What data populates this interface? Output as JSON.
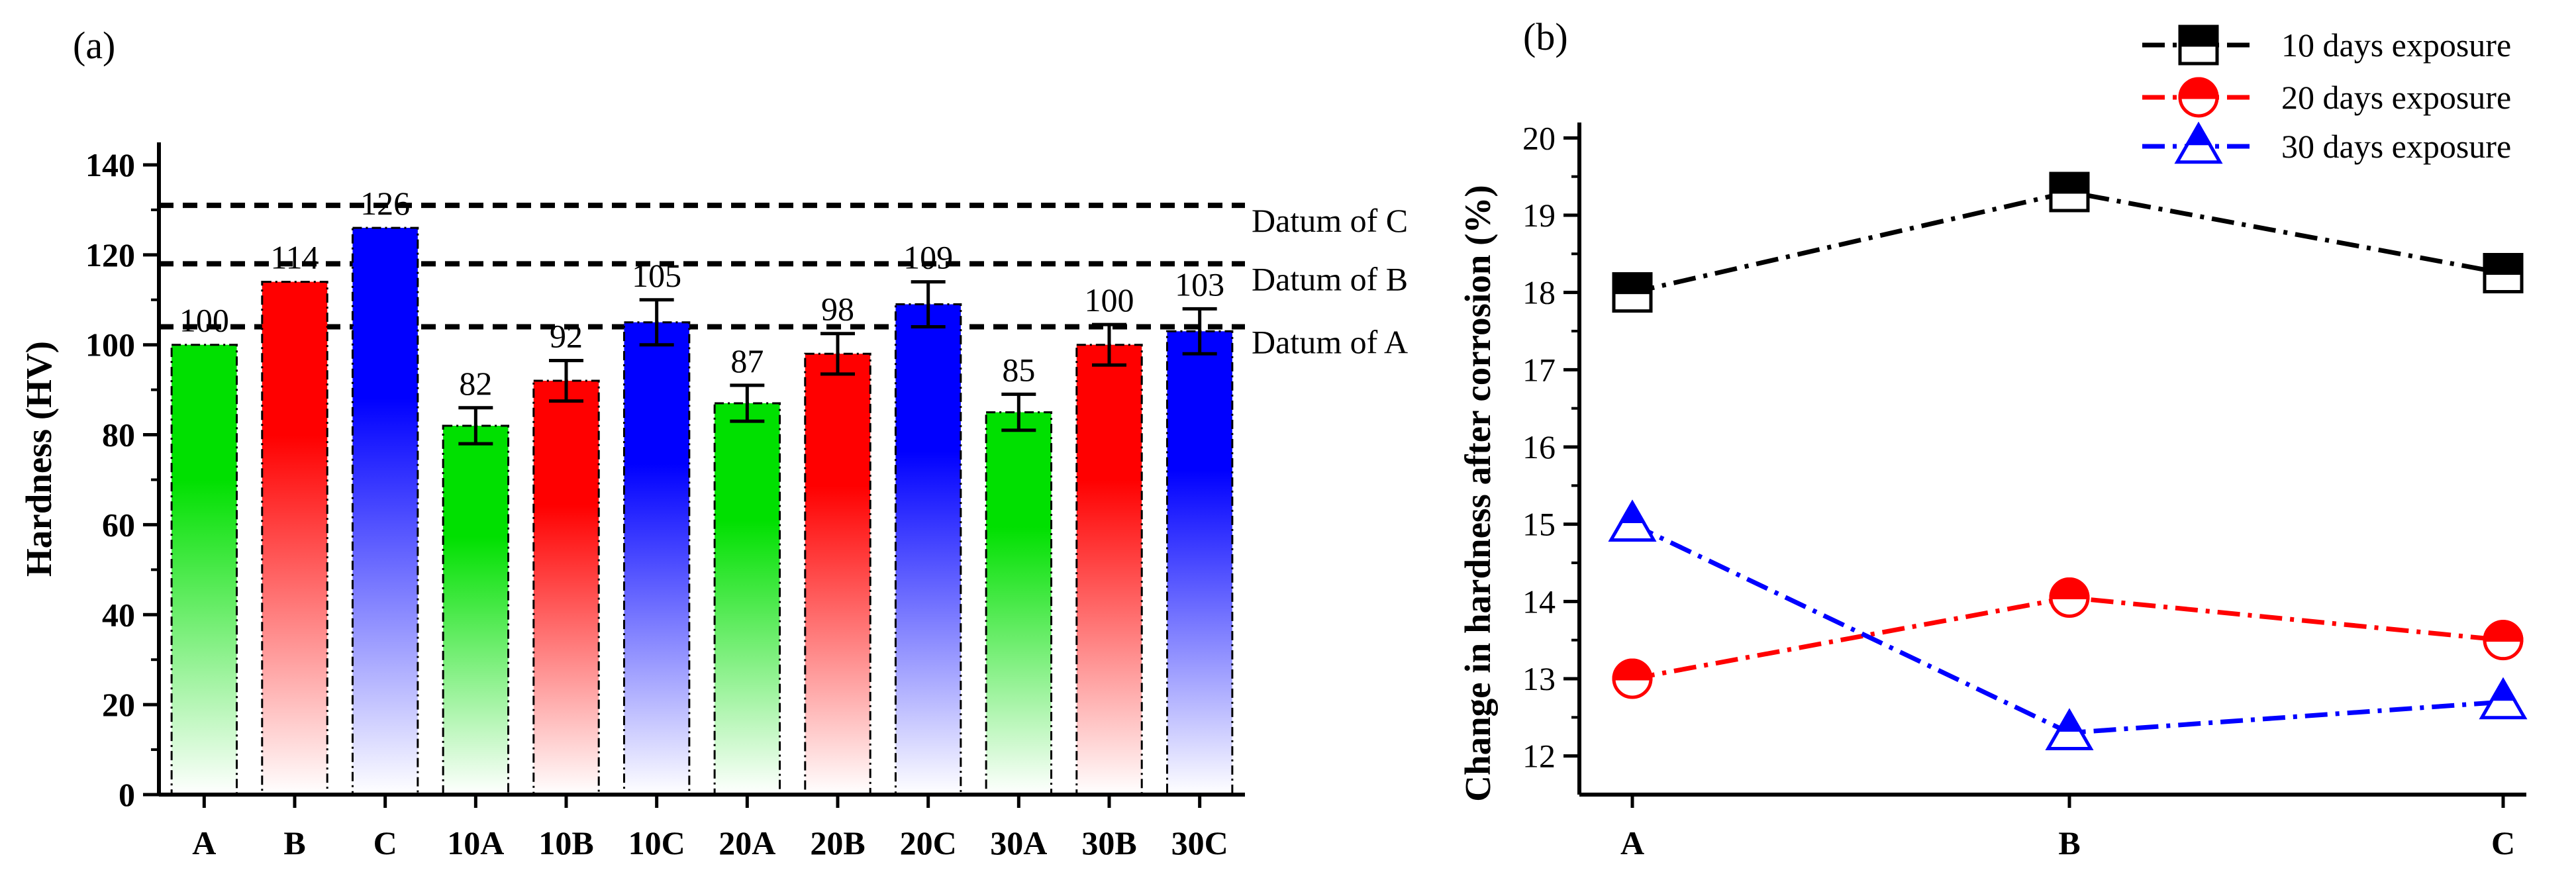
{
  "chart_data": [
    {
      "panel": "(a)",
      "type": "bar",
      "categories": [
        "A",
        "B",
        "C",
        "10A",
        "10B",
        "10C",
        "20A",
        "20B",
        "20C",
        "30A",
        "30B",
        "30C"
      ],
      "values": [
        100,
        114,
        126,
        82,
        92,
        105,
        87,
        98,
        109,
        85,
        100,
        103
      ],
      "value_labels": [
        "100",
        "114",
        "126",
        "82",
        "92",
        "105",
        "87",
        "98",
        "109",
        "85",
        "100",
        "103"
      ],
      "error": [
        0,
        0,
        0,
        4,
        4.5,
        5,
        4,
        4.5,
        5,
        4,
        4.5,
        5
      ],
      "bar_colors": [
        "#00e000",
        "#ff0000",
        "#0000ff",
        "#00e000",
        "#ff0000",
        "#0000ff",
        "#00e000",
        "#ff0000",
        "#0000ff",
        "#00e000",
        "#ff0000",
        "#0000ff"
      ],
      "ylabel": "Hardness (HV)",
      "xlabel": "",
      "ylim": [
        0,
        145
      ],
      "yticks": [
        0,
        20,
        40,
        60,
        80,
        100,
        120,
        140
      ],
      "ytick_labels": [
        "0",
        "20",
        "40",
        "60",
        "80",
        "100",
        "120",
        "140"
      ],
      "reference_lines": [
        {
          "label": "Datum of C",
          "value": 131
        },
        {
          "label": "Datum of B",
          "value": 118
        },
        {
          "label": "Datum of A",
          "value": 104
        }
      ]
    },
    {
      "panel": "(b)",
      "type": "line",
      "categories": [
        "A",
        "B",
        "C"
      ],
      "ylabel": "Change in hardness after corrosion (%)",
      "xlabel": "",
      "ylim": [
        11.5,
        20.2
      ],
      "yticks": [
        12,
        13,
        14,
        15,
        16,
        17,
        18,
        19,
        20
      ],
      "ytick_labels": [
        "12",
        "13",
        "14",
        "15",
        "16",
        "17",
        "18",
        "19",
        "20"
      ],
      "legend_position": "top-right",
      "series": [
        {
          "name": "10 days exposure",
          "values": [
            18.0,
            19.3,
            18.25
          ],
          "color": "#000000",
          "marker": "half-filled-square"
        },
        {
          "name": "20 days exposure",
          "values": [
            13.0,
            14.05,
            13.5
          ],
          "color": "#ff0000",
          "marker": "half-filled-circle"
        },
        {
          "name": "30 days exposure",
          "values": [
            15.0,
            12.3,
            12.7
          ],
          "color": "#0000ff",
          "marker": "half-filled-triangle"
        }
      ]
    }
  ]
}
